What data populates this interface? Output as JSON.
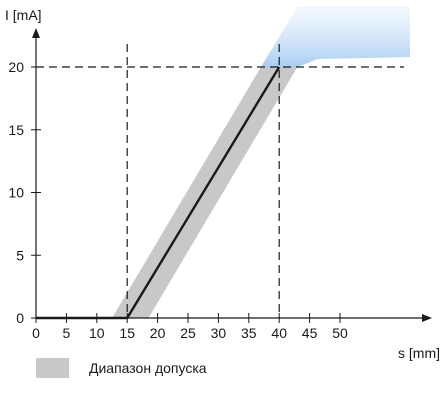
{
  "chart_data": {
    "type": "line",
    "xlabel": "s [mm]",
    "ylabel": "I [mA]",
    "xlim": [
      0,
      52
    ],
    "ylim": [
      0,
      24
    ],
    "x_ticks": [
      "0",
      "5",
      "10",
      "15",
      "20",
      "25",
      "30",
      "35",
      "40",
      "45",
      "50"
    ],
    "y_ticks": [
      "0",
      "5",
      "10",
      "15",
      "20"
    ],
    "grid": false,
    "series": [
      {
        "x": [
          0,
          15,
          40
        ],
        "y": [
          0,
          0,
          20
        ],
        "color": "#1a1a1a"
      }
    ],
    "tolerance_band": {
      "color": "#c8c8ca",
      "upper_color": "#a9cdf2",
      "lower_left": 12.5,
      "lower_right": 18.5,
      "offset_mm": 3
    },
    "reference_lines": {
      "x": [
        15,
        40
      ],
      "y": [
        20
      ],
      "style": "dashed"
    },
    "legend": {
      "position": "bottom-left",
      "items": [
        {
          "label": "Диапазон допуска",
          "color": "#c8c8ca"
        }
      ]
    }
  }
}
